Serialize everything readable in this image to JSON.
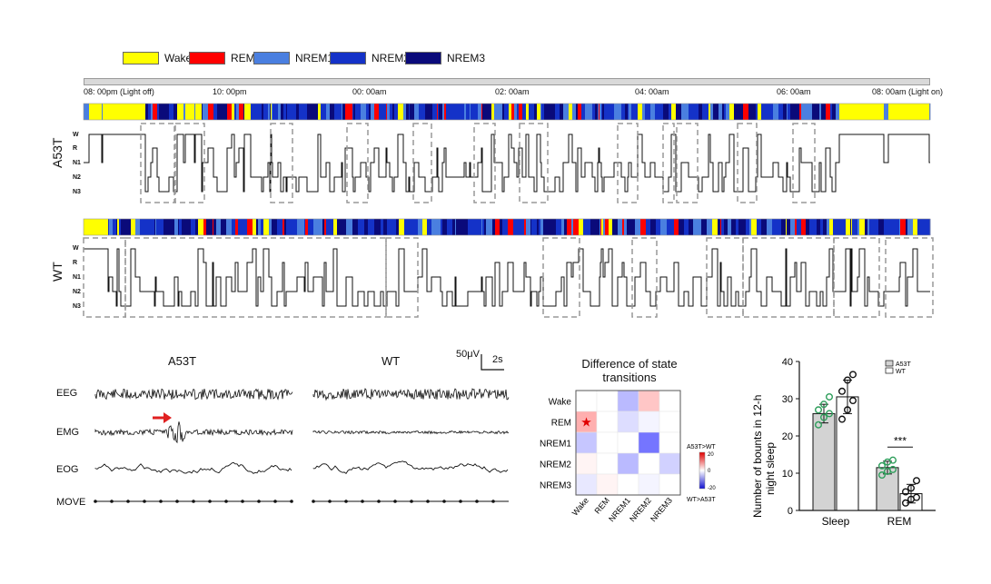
{
  "legend": [
    {
      "label": "Wake",
      "color": "#ffff00"
    },
    {
      "label": "REM",
      "color": "#ff0000"
    },
    {
      "label": "NREM1",
      "color": "#4a7fe0"
    },
    {
      "label": "NREM2",
      "color": "#1432c8"
    },
    {
      "label": "NREM3",
      "color": "#0a0a7a"
    }
  ],
  "time_ticks": [
    "08: 00pm (Light off)",
    "10: 00pm",
    "00: 00am",
    "02: 00am",
    "04: 00am",
    "06: 00am",
    "08: 00am (Light on)"
  ],
  "groups": {
    "a53t": "A53T",
    "wt": "WT"
  },
  "stage_axis": {
    "w": "W",
    "r": "R",
    "n1": "N1",
    "n2": "N2",
    "n3": "N3"
  },
  "signals": {
    "eeg": "EEG",
    "emg": "EMG",
    "eog": "EOG",
    "move": "MOVE",
    "title_a53t": "A53T",
    "title_wt": "WT",
    "scale_v": "50μV",
    "scale_t": "2s"
  },
  "heatmap": {
    "title_line1": "Difference of state",
    "title_line2": "transitions",
    "rows": [
      "Wake",
      "REM",
      "NREM1",
      "NREM2",
      "NREM3"
    ],
    "cols": [
      "Wake",
      "REM",
      "NREM1",
      "NREM2",
      "NREM3"
    ],
    "values": [
      [
        0,
        0,
        -6,
        5,
        0
      ],
      [
        7,
        0,
        -3,
        -1,
        0
      ],
      [
        -5,
        0,
        0,
        -12,
        0
      ],
      [
        1,
        0,
        -6,
        0,
        -4
      ],
      [
        -2,
        1,
        0,
        -1,
        0
      ]
    ],
    "star_label": "★",
    "colorbar_top": "A53T>WT",
    "colorbar_bottom": "WT>A53T",
    "colorbar_ticks": [
      "20",
      "0",
      "-20"
    ]
  },
  "chart_data": {
    "type": "bar",
    "ylabel_line1": "Number of bounts in 12-h",
    "ylabel_line2": "night sleep",
    "categories": [
      "Sleep",
      "REM"
    ],
    "ylim": [
      0,
      40
    ],
    "yticks": [
      "0",
      "10",
      "20",
      "30",
      "40"
    ],
    "series": [
      {
        "name": "A53T",
        "values": [
          26,
          11.5
        ],
        "errors": [
          2.5,
          1.7
        ],
        "fill": "#d3d3d3",
        "point_color": "#2e9e5b",
        "points": [
          [
            23,
            25,
            26,
            27,
            28.5,
            30.5
          ],
          [
            9.5,
            10.5,
            11,
            12,
            13,
            13.5
          ]
        ]
      },
      {
        "name": "WT",
        "values": [
          30.5,
          4.5
        ],
        "errors": [
          4.5,
          2.5
        ],
        "fill": "#ffffff",
        "point_color": "#111111",
        "points": [
          [
            24.5,
            27,
            29.5,
            32,
            35,
            36.5
          ],
          [
            2,
            3,
            3.5,
            5,
            6,
            8
          ]
        ]
      }
    ],
    "significance": "***"
  }
}
